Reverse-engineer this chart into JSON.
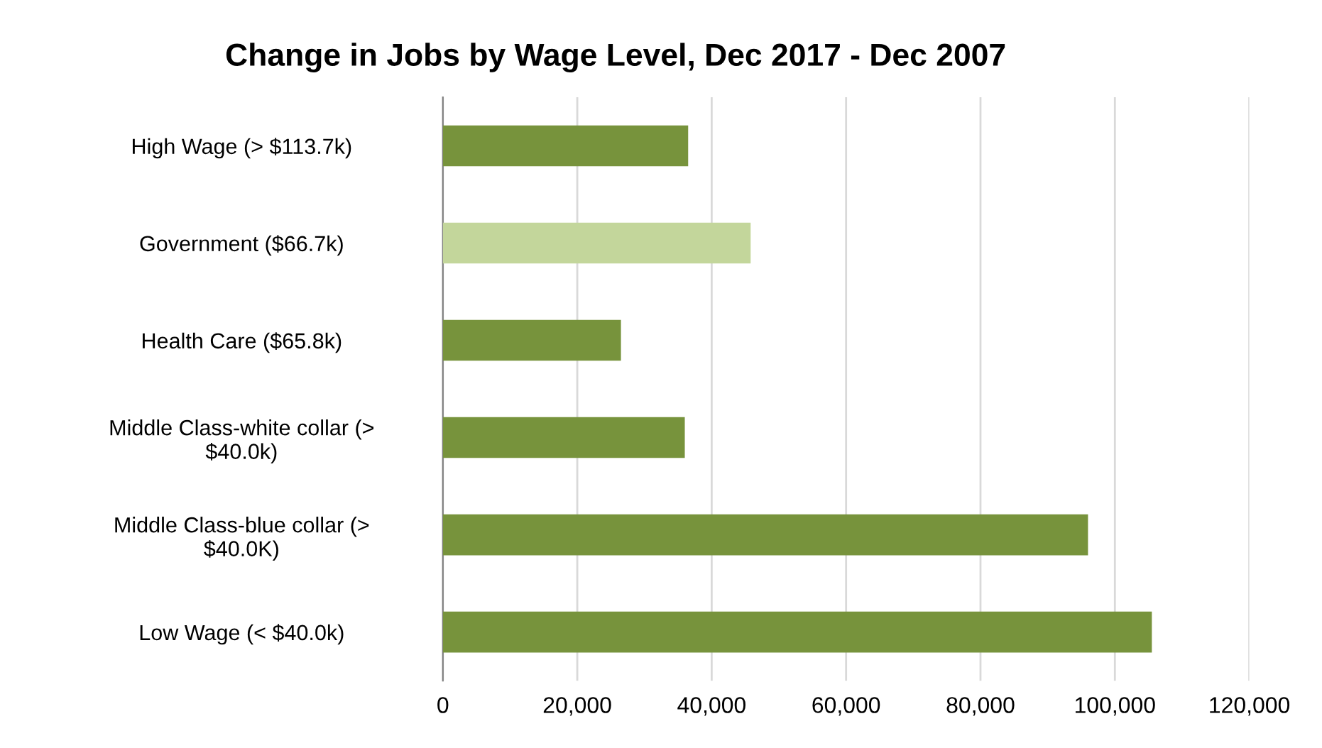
{
  "chart_data": {
    "type": "bar",
    "orientation": "horizontal",
    "title": "Change in Jobs by Wage Level, Dec 2017 - Dec 2007",
    "categories": [
      "High Wage (> $113.7k)",
      "Government ($66.7k)",
      "Health Care ($65.8k)",
      "Middle Class-white collar (>\n$40.0k)",
      "Middle Class-blue collar (>\n$40.0K)",
      "Low Wage (< $40.0k)"
    ],
    "values": [
      36500,
      45800,
      26500,
      36000,
      96000,
      105500
    ],
    "colors": [
      "#77933c",
      "#c3d69b",
      "#77933c",
      "#77933c",
      "#77933c",
      "#77933c"
    ],
    "xlim": [
      0,
      120000
    ],
    "xticks": [
      {
        "value": 0,
        "label": "0"
      },
      {
        "value": 20000,
        "label": "20,000"
      },
      {
        "value": 40000,
        "label": "40,000"
      },
      {
        "value": 60000,
        "label": "60,000"
      },
      {
        "value": 80000,
        "label": "80,000"
      },
      {
        "value": 100000,
        "label": "100,000"
      },
      {
        "value": 120000,
        "label": "120,000"
      }
    ],
    "grid": "x"
  }
}
